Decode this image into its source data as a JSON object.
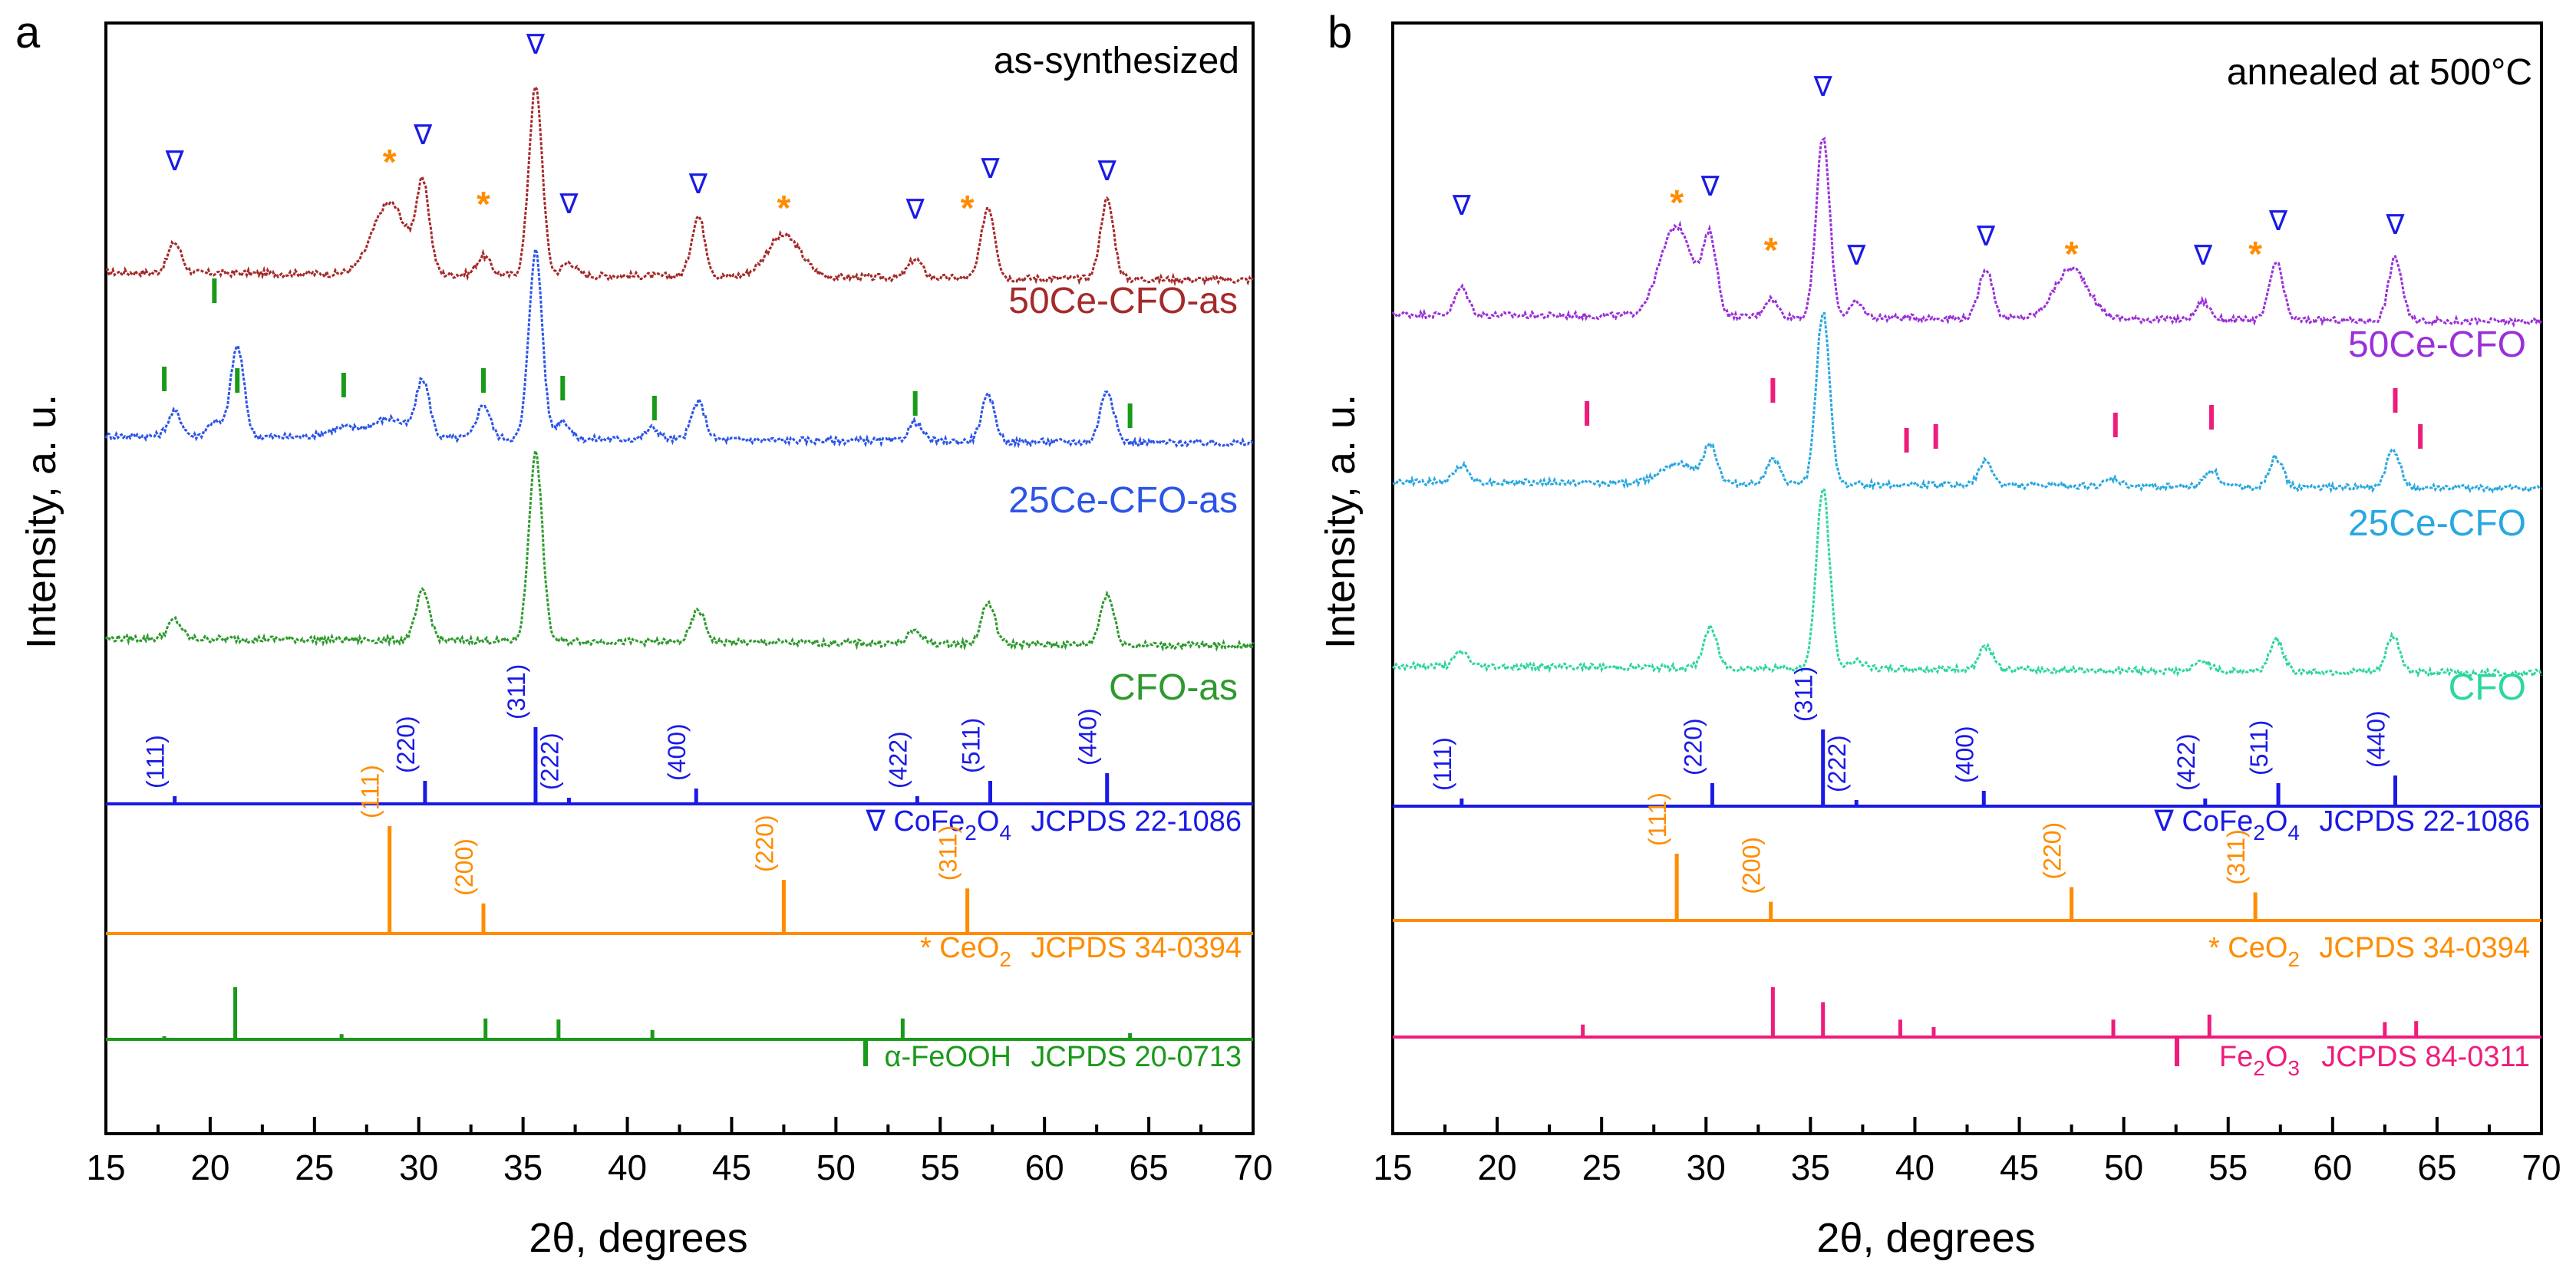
{
  "figure": {
    "type": "xrd-stacked-line-figure"
  },
  "colors": {
    "axis": "#000000",
    "cofe2o4": "#1a1ae6",
    "ceo2": "#ff8c00",
    "feooh": "#1a9a1a",
    "fe2o3": "#ee1c7c",
    "trace_50ce_as": "#a52a2a",
    "trace_25ce_as": "#2c55e8",
    "trace_cfo_as": "#2e9a2e",
    "trace_50ce": "#9b30d9",
    "trace_25ce": "#29a8e0",
    "trace_cfo": "#2ed6a0"
  },
  "chart_data": [
    {
      "panel_label": "a",
      "type": "line",
      "title": "as-synthesized",
      "xlabel": "2θ, degrees",
      "ylabel": "Intensity, a. u.",
      "xlim": [
        15,
        70
      ],
      "xticks": [
        15,
        20,
        25,
        30,
        35,
        40,
        45,
        50,
        55,
        60,
        65,
        70
      ],
      "series": [
        {
          "name": "50Ce-CFO-as",
          "color": "trace_50ce_as",
          "peaks": [
            [
              18.3,
              0.16
            ],
            [
              28.6,
              0.38
            ],
            [
              30.2,
              0.45
            ],
            [
              33.1,
              0.1
            ],
            [
              35.6,
              1.0
            ],
            [
              37.2,
              0.07
            ],
            [
              43.4,
              0.32
            ],
            [
              47.5,
              0.22
            ],
            [
              53.8,
              0.1
            ],
            [
              57.3,
              0.38
            ],
            [
              63.0,
              0.42
            ]
          ]
        },
        {
          "name": "25Ce-CFO-as",
          "color": "trace_25ce_as",
          "peaks": [
            [
              18.3,
              0.13
            ],
            [
              20.2,
              0.08
            ],
            [
              21.3,
              0.48
            ],
            [
              26.4,
              0.05
            ],
            [
              28.6,
              0.1
            ],
            [
              30.2,
              0.3
            ],
            [
              33.1,
              0.18
            ],
            [
              35.6,
              1.0
            ],
            [
              36.9,
              0.1
            ],
            [
              41.2,
              0.06
            ],
            [
              43.4,
              0.2
            ],
            [
              53.8,
              0.1
            ],
            [
              57.3,
              0.24
            ],
            [
              63.0,
              0.28
            ]
          ]
        },
        {
          "name": "CFO-as",
          "color": "trace_cfo_as",
          "peaks": [
            [
              18.3,
              0.1
            ],
            [
              30.2,
              0.26
            ],
            [
              35.6,
              1.0
            ],
            [
              43.4,
              0.17
            ],
            [
              53.8,
              0.07
            ],
            [
              57.3,
              0.22
            ],
            [
              63.0,
              0.27
            ]
          ]
        }
      ],
      "reference_patterns": [
        {
          "marker": "∇",
          "phase": "CoFe",
          "phase_sub": "2",
          "phase_tail": "O",
          "phase_sub2": "4",
          "card": "JCPDS 22-1086",
          "color": "cofe2o4",
          "lines": [
            [
              18.3,
              0.1,
              "(111)"
            ],
            [
              30.3,
              0.3,
              "(220)"
            ],
            [
              35.6,
              1.0,
              "(311)"
            ],
            [
              37.2,
              0.08,
              "(222)"
            ],
            [
              43.3,
              0.2,
              "(400)"
            ],
            [
              53.9,
              0.1,
              "(422)"
            ],
            [
              57.4,
              0.3,
              "(511)"
            ],
            [
              63.0,
              0.4,
              "(440)"
            ]
          ]
        },
        {
          "marker": "*",
          "phase": "CeO",
          "phase_sub": "2",
          "phase_tail": "",
          "phase_sub2": "",
          "card": "JCPDS 34-0394",
          "color": "ceo2",
          "lines": [
            [
              28.6,
              1.0,
              "(111)"
            ],
            [
              33.1,
              0.28,
              "(200)"
            ],
            [
              47.5,
              0.5,
              "(220)"
            ],
            [
              56.3,
              0.42,
              "(311)"
            ]
          ]
        },
        {
          "marker": "|",
          "phase": "α-FeOOH",
          "phase_sub": "",
          "phase_tail": "",
          "phase_sub2": "",
          "card": "JCPDS 20-0713",
          "color": "feooh",
          "lines": [
            [
              17.8,
              0.06,
              ""
            ],
            [
              21.2,
              1.0,
              ""
            ],
            [
              26.3,
              0.1,
              ""
            ],
            [
              33.2,
              0.4,
              ""
            ],
            [
              36.7,
              0.38,
              ""
            ],
            [
              41.2,
              0.18,
              ""
            ],
            [
              53.2,
              0.4,
              ""
            ],
            [
              64.1,
              0.12,
              ""
            ]
          ]
        }
      ],
      "peak_markers": {
        "spinel": [
          18.3,
          30.2,
          35.6,
          37.2,
          43.4,
          53.8,
          57.4,
          63.0
        ],
        "ceria": [
          28.6,
          33.1,
          47.5,
          56.3
        ],
        "goethite": [
          17.8,
          20.2,
          21.3,
          26.4,
          33.1,
          36.9,
          41.3,
          53.8,
          64.1
        ]
      }
    },
    {
      "panel_label": "b",
      "type": "line",
      "title": "annealed at 500°C",
      "xlabel": "2θ, degrees",
      "ylabel": "Intensity, a. u.",
      "xlim": [
        15,
        70
      ],
      "xticks": [
        15,
        20,
        25,
        30,
        35,
        40,
        45,
        50,
        55,
        60,
        65,
        70
      ],
      "series": [
        {
          "name": "50Ce-CFO",
          "color": "trace_50ce",
          "peaks": [
            [
              18.3,
              0.15
            ],
            [
              28.6,
              0.5
            ],
            [
              30.2,
              0.4
            ],
            [
              33.1,
              0.1
            ],
            [
              35.6,
              1.0
            ],
            [
              37.2,
              0.08
            ],
            [
              43.4,
              0.28
            ],
            [
              47.5,
              0.28
            ],
            [
              53.8,
              0.1
            ],
            [
              57.3,
              0.32
            ],
            [
              63.0,
              0.35
            ]
          ]
        },
        {
          "name": "25Ce-CFO",
          "color": "trace_25ce",
          "peaks": [
            [
              18.3,
              0.1
            ],
            [
              28.6,
              0.12
            ],
            [
              30.2,
              0.22
            ],
            [
              33.2,
              0.14
            ],
            [
              35.6,
              1.0
            ],
            [
              43.4,
              0.14
            ],
            [
              49.5,
              0.04
            ],
            [
              54.2,
              0.1
            ],
            [
              57.3,
              0.17
            ],
            [
              62.9,
              0.22
            ]
          ]
        },
        {
          "name": "CFO",
          "color": "trace_cfo",
          "peaks": [
            [
              18.3,
              0.08
            ],
            [
              30.2,
              0.22
            ],
            [
              35.6,
              1.0
            ],
            [
              37.2,
              0.05
            ],
            [
              43.4,
              0.13
            ],
            [
              53.8,
              0.06
            ],
            [
              57.3,
              0.18
            ],
            [
              62.9,
              0.2
            ]
          ]
        }
      ],
      "reference_patterns": [
        {
          "marker": "∇",
          "phase": "CoFe",
          "phase_sub": "2",
          "phase_tail": "O",
          "phase_sub2": "4",
          "card": "JCPDS 22-1086",
          "color": "cofe2o4",
          "lines": [
            [
              18.3,
              0.1,
              "(111)"
            ],
            [
              30.3,
              0.3,
              "(220)"
            ],
            [
              35.6,
              1.0,
              "(311)"
            ],
            [
              37.2,
              0.08,
              "(222)"
            ],
            [
              43.3,
              0.2,
              "(400)"
            ],
            [
              53.9,
              0.1,
              "(422)"
            ],
            [
              57.4,
              0.3,
              "(511)"
            ],
            [
              63.0,
              0.4,
              "(440)"
            ]
          ]
        },
        {
          "marker": "*",
          "phase": "CeO",
          "phase_sub": "2",
          "phase_tail": "",
          "phase_sub2": "",
          "card": "JCPDS 34-0394",
          "color": "ceo2",
          "lines": [
            [
              28.6,
              1.0,
              "(111)"
            ],
            [
              33.1,
              0.28,
              "(200)"
            ],
            [
              47.5,
              0.5,
              "(220)"
            ],
            [
              56.3,
              0.42,
              "(311)"
            ]
          ]
        },
        {
          "marker": "|",
          "phase": "Fe",
          "phase_sub": "2",
          "phase_tail": "O",
          "phase_sub2": "3",
          "card": "JCPDS 84-0311",
          "color": "fe2o3",
          "lines": [
            [
              24.1,
              0.25,
              ""
            ],
            [
              33.2,
              1.0,
              ""
            ],
            [
              35.6,
              0.7,
              ""
            ],
            [
              39.3,
              0.35,
              ""
            ],
            [
              40.9,
              0.2,
              ""
            ],
            [
              49.5,
              0.35,
              ""
            ],
            [
              54.1,
              0.45,
              ""
            ],
            [
              62.5,
              0.3,
              ""
            ],
            [
              64.0,
              0.32,
              ""
            ]
          ]
        }
      ],
      "peak_markers": {
        "spinel": [
          18.3,
          30.2,
          35.6,
          37.2,
          43.4,
          53.8,
          57.4,
          63.0
        ],
        "ceria": [
          28.6,
          33.1,
          47.5,
          56.3
        ],
        "hematite": [
          24.3,
          33.2,
          39.6,
          41.0,
          49.6,
          54.2,
          63.0,
          64.2
        ]
      }
    }
  ]
}
